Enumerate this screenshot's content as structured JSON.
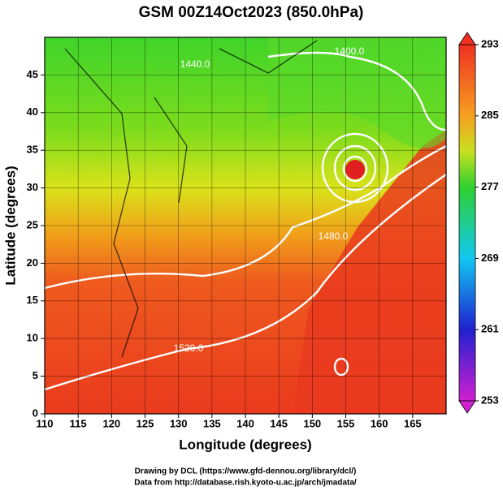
{
  "title": "GSM 00Z14Oct2023 (850.0hPa)",
  "x_axis": {
    "label": "Longitude (degrees)",
    "lim": [
      110,
      170
    ],
    "ticks": [
      110,
      115,
      120,
      125,
      130,
      135,
      140,
      145,
      150,
      155,
      160,
      165
    ]
  },
  "y_axis": {
    "label": "Latitude  (degrees)",
    "lim": [
      0,
      50
    ],
    "ticks": [
      0,
      5,
      10,
      15,
      20,
      25,
      30,
      35,
      40,
      45
    ]
  },
  "colorbar": {
    "lim": [
      253,
      293
    ],
    "ticks": [
      253,
      261,
      269,
      277,
      285,
      293
    ]
  },
  "contour_labels": [
    "1400.0",
    "1440.0",
    "1480.0",
    "1520.0"
  ],
  "credits": [
    "Drawing by DCL (https://www.gfd-dennou.org/library/dcl/)",
    "Data from http://database.rish.kyoto-u.ac.jp/arch/jmadata/"
  ]
}
